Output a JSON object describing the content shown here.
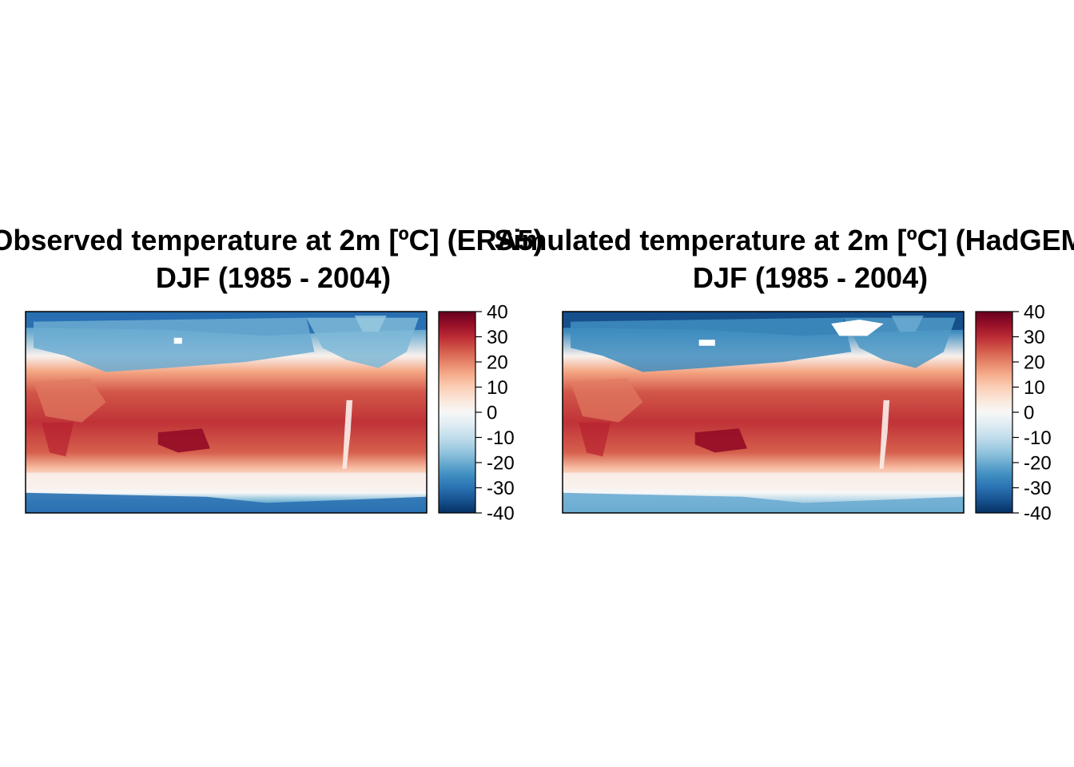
{
  "chart_data": [
    {
      "type": "heatmap",
      "title": "Observed temperature at 2m [ºC] (ERA5)",
      "subtitle": "DJF (1985 - 2004)",
      "colorbar": {
        "ticks": [
          40,
          30,
          20,
          10,
          0,
          -10,
          -20,
          -30,
          -40
        ],
        "range": [
          -40,
          40
        ]
      },
      "regions": {
        "arctic": -25,
        "northern_continents": -20,
        "midlatitude_ocean": 8,
        "tropics": 27,
        "australia": 35,
        "southern_ocean": 2,
        "antarctica": -30
      }
    },
    {
      "type": "heatmap",
      "title": "Simulated temperature at 2m [ºC] (HadGEM",
      "subtitle": "DJF (1985 - 2004)",
      "colorbar": {
        "ticks": [
          40,
          30,
          20,
          10,
          0,
          -10,
          -20,
          -30,
          -40
        ],
        "range": [
          -40,
          40
        ]
      },
      "regions": {
        "arctic": -30,
        "northern_continents": -25,
        "midlatitude_ocean": 8,
        "tropics": 27,
        "australia": 35,
        "southern_ocean": 2,
        "antarctica": -20
      }
    }
  ],
  "colors": {
    "scale": [
      "#053061",
      "#2166ac",
      "#4393c3",
      "#92c5de",
      "#d1e5f0",
      "#f7f7f7",
      "#fddbc7",
      "#f4a582",
      "#d6604d",
      "#b2182b",
      "#67001f"
    ]
  }
}
